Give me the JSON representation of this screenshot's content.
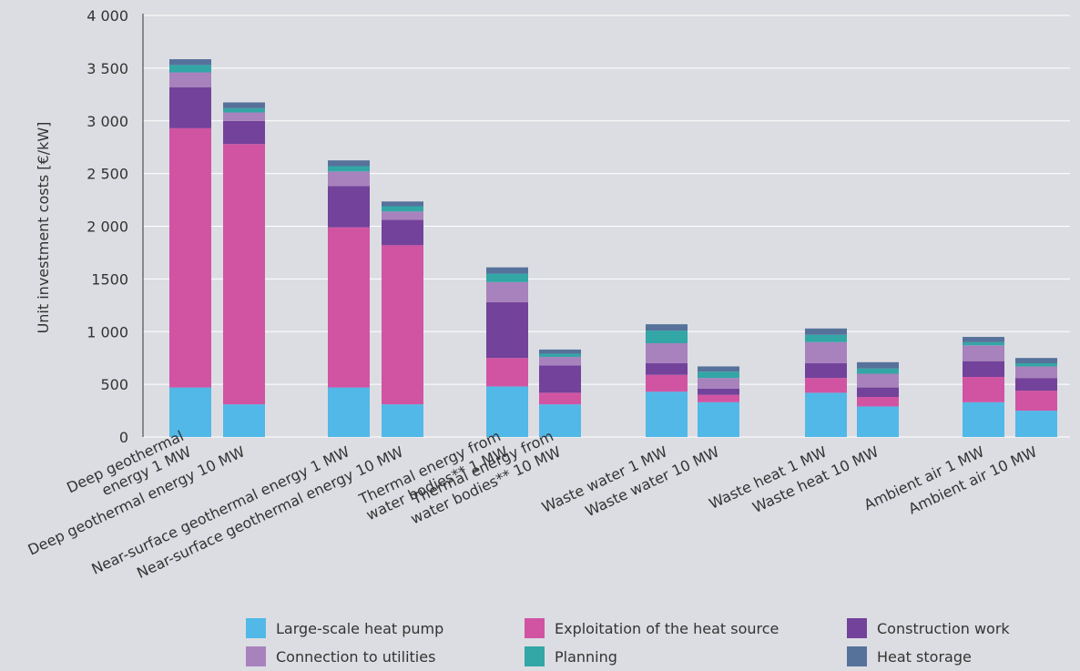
{
  "chart_data": {
    "type": "bar",
    "stacked": true,
    "title": "",
    "xlabel": "",
    "ylabel": "Unit investment costs [€/kW]",
    "ylim": [
      0,
      4000
    ],
    "yticks": [
      0,
      500,
      1000,
      1500,
      2000,
      2500,
      3000,
      3500,
      4000
    ],
    "ytick_labels": [
      "0",
      "500",
      "1 000",
      "1500",
      "2 000",
      "2 500",
      "3 000",
      "3 500",
      "4 000"
    ],
    "grid": "horizontal",
    "legend_position": "bottom",
    "categories": [
      "Deep geothermal energy 1 MW",
      "Deep geothermal energy 10 MW",
      "Near-surface geothermal energy 1 MW",
      "Near-surface geothermal energy 10 MW",
      "Thermal energy from water bodies** 1 MW",
      "Thermal energy from water bodies** 10 MW",
      "Waste water 1 MW",
      "Waste water 10 MW",
      "Waste heat 1 MW",
      "Waste heat 10 MW",
      "Ambient air 1 MW",
      "Ambient air 10 MW"
    ],
    "category_label_lines": [
      [
        "Deep geothermal",
        "energy 1 MW"
      ],
      [
        "Deep geothermal energy 10 MW"
      ],
      [
        "Near-surface geothermal energy 1 MW"
      ],
      [
        "Near-surface geothermal energy 10 MW"
      ],
      [
        "Thermal energy from",
        "water bodies** 1 MW"
      ],
      [
        "Thermal energy from",
        "water bodies** 10 MW"
      ],
      [
        "Waste water 1 MW"
      ],
      [
        "Waste water 10 MW"
      ],
      [
        "Waste heat 1 MW"
      ],
      [
        "Waste heat 10 MW"
      ],
      [
        "Ambient air 1 MW"
      ],
      [
        "Ambient air 10 MW"
      ]
    ],
    "series": [
      {
        "name": "Large-scale heat pump",
        "color": "#52b8e8",
        "values": [
          470,
          310,
          470,
          310,
          480,
          310,
          430,
          330,
          420,
          290,
          330,
          250
        ]
      },
      {
        "name": "Exploitation of the heat source",
        "color": "#d154a3",
        "values": [
          2460,
          2470,
          1520,
          1510,
          270,
          110,
          160,
          70,
          140,
          90,
          240,
          190
        ]
      },
      {
        "name": "Construction work",
        "color": "#73429a",
        "values": [
          390,
          220,
          390,
          240,
          530,
          260,
          110,
          60,
          140,
          90,
          150,
          120
        ]
      },
      {
        "name": "Connection to utilities",
        "color": "#a882bd",
        "values": [
          140,
          80,
          140,
          80,
          190,
          80,
          190,
          100,
          200,
          130,
          150,
          110
        ]
      },
      {
        "name": "Planning",
        "color": "#33a6a6",
        "values": [
          70,
          40,
          50,
          50,
          80,
          30,
          120,
          60,
          70,
          50,
          30,
          30
        ]
      },
      {
        "name": "Heat storage",
        "color": "#56729b",
        "values": [
          55,
          55,
          55,
          45,
          60,
          40,
          60,
          50,
          60,
          60,
          50,
          50
        ]
      }
    ]
  }
}
